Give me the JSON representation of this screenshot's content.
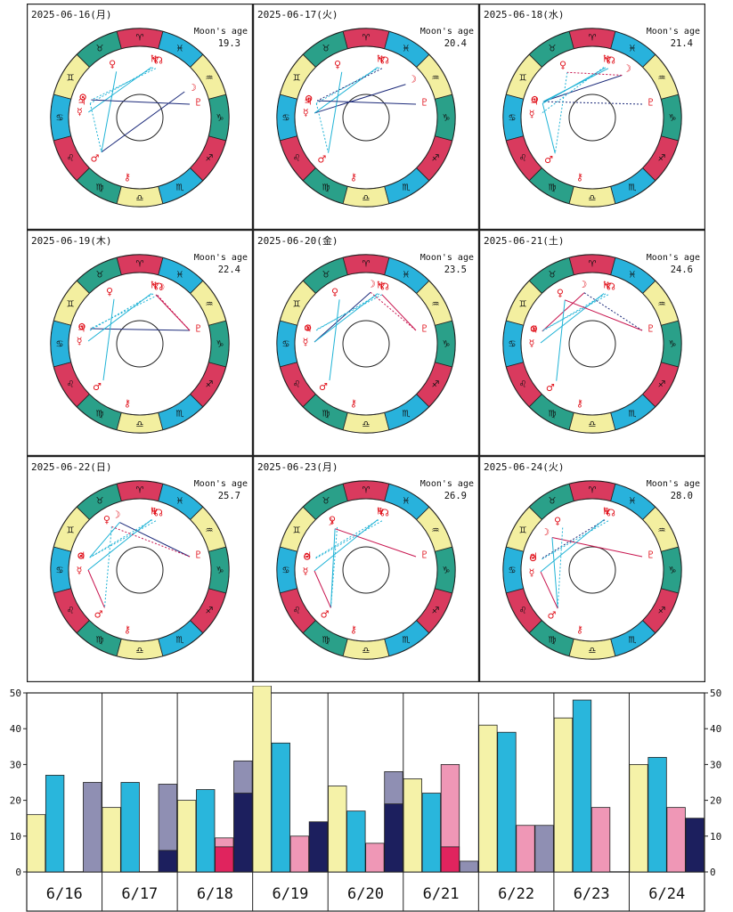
{
  "colors": {
    "fire": "#d93a5e",
    "earth": "#2aa089",
    "air": "#f3efa0",
    "water": "#28b2dc",
    "planet": "#e0101a",
    "aspect_light": "#1fb3d6",
    "aspect_dark": "#1c2a7a",
    "aspect_red": "#c8144e",
    "bar_yellow": "#f5f2a8",
    "bar_cyan": "#29b6dc",
    "bar_mauve": "#8f8fb3",
    "bar_navy": "#1c1f5e",
    "bar_pink": "#ef97b6",
    "bar_red": "#e0245e"
  },
  "wheel_labels": {
    "moon_age_label": "Moon's age"
  },
  "sign_glyphs": [
    "♈",
    "♉",
    "♊",
    "♋",
    "♌",
    "♍",
    "♎",
    "♏",
    "♐",
    "♑",
    "♒",
    "♓"
  ],
  "wheels": [
    {
      "date": "2025-06-16(月)",
      "moon_age": "19.3",
      "planets": [
        {
          "g": "☽",
          "lon": 315
        },
        {
          "g": "♇",
          "lon": 300
        },
        {
          "g": "♆",
          "lon": 0
        },
        {
          "g": "♄",
          "lon": 2
        },
        {
          "g": "☊",
          "lon": 357
        },
        {
          "g": "♀",
          "lon": 42
        },
        {
          "g": "⊙",
          "lon": 85
        },
        {
          "g": "♃",
          "lon": 89
        },
        {
          "g": "☿",
          "lon": 99
        },
        {
          "g": "♂",
          "lon": 147
        },
        {
          "g": "⚷",
          "lon": 183
        }
      ],
      "aspects": [
        [
          315,
          147,
          "d"
        ],
        [
          0,
          89,
          "l"
        ],
        [
          2,
          99,
          "l"
        ],
        [
          357,
          85,
          "l"
        ],
        [
          42,
          147,
          "l"
        ],
        [
          89,
          147,
          "l"
        ],
        [
          300,
          85,
          "d"
        ]
      ]
    },
    {
      "date": "2025-06-17(火)",
      "moon_age": "20.4",
      "planets": [
        {
          "g": "☽",
          "lon": 325
        },
        {
          "g": "♇",
          "lon": 300
        },
        {
          "g": "♆",
          "lon": 0
        },
        {
          "g": "♄",
          "lon": 2
        },
        {
          "g": "☊",
          "lon": 357
        },
        {
          "g": "♀",
          "lon": 43
        },
        {
          "g": "⊙",
          "lon": 86
        },
        {
          "g": "♃",
          "lon": 89
        },
        {
          "g": "☿",
          "lon": 100
        },
        {
          "g": "♂",
          "lon": 148
        },
        {
          "g": "⚷",
          "lon": 183
        }
      ],
      "aspects": [
        [
          325,
          100,
          "d"
        ],
        [
          0,
          89,
          "l"
        ],
        [
          2,
          100,
          "l"
        ],
        [
          357,
          86,
          "d"
        ],
        [
          43,
          148,
          "l"
        ],
        [
          89,
          148,
          "l"
        ],
        [
          300,
          86,
          "d"
        ]
      ]
    },
    {
      "date": "2025-06-18(水)",
      "moon_age": "21.4",
      "planets": [
        {
          "g": "☽",
          "lon": 340
        },
        {
          "g": "♇",
          "lon": 300
        },
        {
          "g": "♆",
          "lon": 0
        },
        {
          "g": "♄",
          "lon": 2
        },
        {
          "g": "☊",
          "lon": 357
        },
        {
          "g": "♀",
          "lon": 44
        },
        {
          "g": "⊙",
          "lon": 87
        },
        {
          "g": "♃",
          "lon": 89
        },
        {
          "g": "☿",
          "lon": 101
        },
        {
          "g": "♂",
          "lon": 149
        },
        {
          "g": "⚷",
          "lon": 183
        }
      ],
      "aspects": [
        [
          340,
          87,
          "d"
        ],
        [
          300,
          87,
          "d"
        ],
        [
          0,
          89,
          "l"
        ],
        [
          2,
          101,
          "l"
        ],
        [
          357,
          87,
          "l"
        ],
        [
          44,
          149,
          "l"
        ],
        [
          89,
          149,
          "l"
        ],
        [
          340,
          44,
          "r"
        ]
      ]
    },
    {
      "date": "2025-06-19(木)",
      "moon_age": "22.4",
      "planets": [
        {
          "g": "☽",
          "lon": 355
        },
        {
          "g": "♇",
          "lon": 300
        },
        {
          "g": "♆",
          "lon": 0
        },
        {
          "g": "♄",
          "lon": 2
        },
        {
          "g": "☊",
          "lon": 357
        },
        {
          "g": "♀",
          "lon": 45
        },
        {
          "g": "⊙",
          "lon": 88
        },
        {
          "g": "♃",
          "lon": 90
        },
        {
          "g": "☿",
          "lon": 102
        },
        {
          "g": "♂",
          "lon": 150
        },
        {
          "g": "⚷",
          "lon": 183
        }
      ],
      "aspects": [
        [
          300,
          88,
          "d"
        ],
        [
          0,
          90,
          "l"
        ],
        [
          2,
          102,
          "l"
        ],
        [
          355,
          88,
          "l"
        ],
        [
          45,
          150,
          "l"
        ],
        [
          355,
          300,
          "r"
        ],
        [
          357,
          300,
          "r"
        ]
      ]
    },
    {
      "date": "2025-06-20(金)",
      "moon_age": "23.5",
      "planets": [
        {
          "g": "☽",
          "lon": 10
        },
        {
          "g": "♇",
          "lon": 300
        },
        {
          "g": "♆",
          "lon": 0
        },
        {
          "g": "♄",
          "lon": 2
        },
        {
          "g": "☊",
          "lon": 357
        },
        {
          "g": "♀",
          "lon": 46
        },
        {
          "g": "⊙",
          "lon": 89
        },
        {
          "g": "♃",
          "lon": 90
        },
        {
          "g": "☿",
          "lon": 103
        },
        {
          "g": "♂",
          "lon": 150
        },
        {
          "g": "⚷",
          "lon": 183
        }
      ],
      "aspects": [
        [
          10,
          103,
          "d"
        ],
        [
          0,
          90,
          "l"
        ],
        [
          2,
          103,
          "l"
        ],
        [
          357,
          89,
          "l"
        ],
        [
          46,
          150,
          "l"
        ],
        [
          10,
          300,
          "r"
        ],
        [
          357,
          300,
          "r"
        ]
      ]
    },
    {
      "date": "2025-06-21(土)",
      "moon_age": "24.6",
      "planets": [
        {
          "g": "☽",
          "lon": 24
        },
        {
          "g": "♇",
          "lon": 300
        },
        {
          "g": "♆",
          "lon": 0
        },
        {
          "g": "♄",
          "lon": 2
        },
        {
          "g": "☊",
          "lon": 357
        },
        {
          "g": "♀",
          "lon": 47
        },
        {
          "g": "⊙",
          "lon": 90
        },
        {
          "g": "♃",
          "lon": 91
        },
        {
          "g": "☿",
          "lon": 104
        },
        {
          "g": "♂",
          "lon": 151
        },
        {
          "g": "⚷",
          "lon": 183
        }
      ],
      "aspects": [
        [
          24,
          91,
          "r"
        ],
        [
          0,
          91,
          "l"
        ],
        [
          2,
          104,
          "l"
        ],
        [
          357,
          90,
          "l"
        ],
        [
          47,
          151,
          "l"
        ],
        [
          24,
          300,
          "d"
        ],
        [
          47,
          300,
          "r"
        ]
      ]
    },
    {
      "date": "2025-06-22(日)",
      "moon_age": "25.7",
      "planets": [
        {
          "g": "☽",
          "lon": 38
        },
        {
          "g": "♇",
          "lon": 300
        },
        {
          "g": "♆",
          "lon": 1
        },
        {
          "g": "♄",
          "lon": 2
        },
        {
          "g": "☊",
          "lon": 357
        },
        {
          "g": "♀",
          "lon": 48
        },
        {
          "g": "⊙",
          "lon": 91
        },
        {
          "g": "♃",
          "lon": 91
        },
        {
          "g": "☿",
          "lon": 105
        },
        {
          "g": "♂",
          "lon": 152
        },
        {
          "g": "⚷",
          "lon": 183
        }
      ],
      "aspects": [
        [
          38,
          300,
          "d"
        ],
        [
          1,
          91,
          "l"
        ],
        [
          2,
          105,
          "l"
        ],
        [
          357,
          91,
          "l"
        ],
        [
          38,
          91,
          "l"
        ],
        [
          48,
          300,
          "r"
        ],
        [
          105,
          152,
          "r"
        ],
        [
          48,
          152,
          "l"
        ]
      ]
    },
    {
      "date": "2025-06-23(月)",
      "moon_age": "26.9",
      "planets": [
        {
          "g": "☽",
          "lon": 52
        },
        {
          "g": "♇",
          "lon": 300
        },
        {
          "g": "♆",
          "lon": 1
        },
        {
          "g": "♄",
          "lon": 2
        },
        {
          "g": "☊",
          "lon": 357
        },
        {
          "g": "♀",
          "lon": 49
        },
        {
          "g": "⊙",
          "lon": 92
        },
        {
          "g": "♃",
          "lon": 91
        },
        {
          "g": "☿",
          "lon": 106
        },
        {
          "g": "♂",
          "lon": 152
        },
        {
          "g": "⚷",
          "lon": 183
        }
      ],
      "aspects": [
        [
          52,
          300,
          "r"
        ],
        [
          1,
          91,
          "l"
        ],
        [
          2,
          106,
          "l"
        ],
        [
          357,
          92,
          "l"
        ],
        [
          52,
          152,
          "l"
        ],
        [
          49,
          152,
          "l"
        ],
        [
          106,
          152,
          "r"
        ]
      ]
    },
    {
      "date": "2025-06-24(火)",
      "moon_age": "28.0",
      "planets": [
        {
          "g": "☽",
          "lon": 66
        },
        {
          "g": "♇",
          "lon": 300
        },
        {
          "g": "♆",
          "lon": 1
        },
        {
          "g": "♄",
          "lon": 2
        },
        {
          "g": "☊",
          "lon": 357
        },
        {
          "g": "♀",
          "lon": 50
        },
        {
          "g": "⊙",
          "lon": 93
        },
        {
          "g": "♃",
          "lon": 92
        },
        {
          "g": "☿",
          "lon": 107
        },
        {
          "g": "♂",
          "lon": 153
        },
        {
          "g": "⚷",
          "lon": 183
        }
      ],
      "aspects": [
        [
          66,
          300,
          "r"
        ],
        [
          1,
          92,
          "d"
        ],
        [
          2,
          107,
          "l"
        ],
        [
          357,
          93,
          "l"
        ],
        [
          66,
          153,
          "l"
        ],
        [
          50,
          153,
          "l"
        ],
        [
          107,
          153,
          "r"
        ]
      ]
    }
  ],
  "chart_data": {
    "type": "bar",
    "categories": [
      "6/16",
      "6/17",
      "6/18",
      "6/19",
      "6/20",
      "6/21",
      "6/22",
      "6/23",
      "6/24"
    ],
    "ylim": [
      0,
      50
    ],
    "yticks": [
      0,
      10,
      20,
      30,
      40,
      50
    ],
    "grid": false,
    "groups": [
      [
        {
          "v": 16,
          "c": "bar_yellow"
        },
        {
          "v": 27,
          "c": "bar_cyan"
        },
        null,
        {
          "v": 25,
          "c": "bar_mauve"
        }
      ],
      [
        {
          "v": 18,
          "c": "bar_yellow"
        },
        {
          "v": 25,
          "c": "bar_cyan"
        },
        null,
        {
          "v": 24.5,
          "c": "bar_mauve",
          "inner": 6,
          "inner_c": "bar_navy"
        }
      ],
      [
        {
          "v": 20,
          "c": "bar_yellow"
        },
        {
          "v": 23,
          "c": "bar_cyan"
        },
        {
          "v": 9.5,
          "c": "bar_pink",
          "inner": 7,
          "inner_c": "bar_red"
        },
        {
          "v": 31,
          "c": "bar_mauve",
          "inner": 22,
          "inner_c": "bar_navy"
        }
      ],
      [
        {
          "v": 52,
          "c": "bar_yellow"
        },
        {
          "v": 36,
          "c": "bar_cyan"
        },
        {
          "v": 10,
          "c": "bar_pink"
        },
        {
          "v": 14,
          "c": "bar_navy"
        }
      ],
      [
        {
          "v": 24,
          "c": "bar_yellow"
        },
        {
          "v": 17,
          "c": "bar_cyan"
        },
        {
          "v": 8,
          "c": "bar_pink"
        },
        {
          "v": 28,
          "c": "bar_mauve",
          "inner": 19,
          "inner_c": "bar_navy"
        }
      ],
      [
        {
          "v": 26,
          "c": "bar_yellow"
        },
        {
          "v": 22,
          "c": "bar_cyan"
        },
        {
          "v": 30,
          "c": "bar_pink",
          "inner": 7,
          "inner_c": "bar_red"
        },
        {
          "v": 3,
          "c": "bar_mauve"
        }
      ],
      [
        {
          "v": 41,
          "c": "bar_yellow"
        },
        {
          "v": 39,
          "c": "bar_cyan"
        },
        {
          "v": 13,
          "c": "bar_pink"
        },
        {
          "v": 13,
          "c": "bar_mauve"
        }
      ],
      [
        {
          "v": 43,
          "c": "bar_yellow"
        },
        {
          "v": 48,
          "c": "bar_cyan"
        },
        {
          "v": 18,
          "c": "bar_pink"
        },
        null
      ],
      [
        {
          "v": 30,
          "c": "bar_yellow"
        },
        {
          "v": 32,
          "c": "bar_cyan"
        },
        {
          "v": 18,
          "c": "bar_pink"
        },
        {
          "v": 15,
          "c": "bar_navy"
        }
      ]
    ]
  }
}
